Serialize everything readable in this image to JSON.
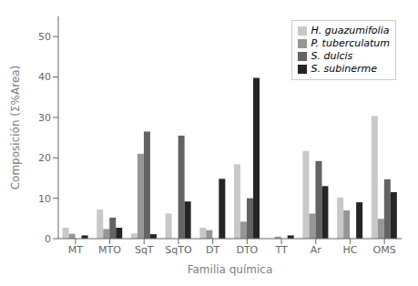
{
  "chart_data": {
    "type": "bar",
    "xlabel": "Familia química",
    "ylabel": "Composición (Σ%Area)",
    "categories": [
      "MT",
      "MTO",
      "SqT",
      "SqTO",
      "DT",
      "DTO",
      "TT",
      "Ar",
      "HC",
      "OMS"
    ],
    "series": [
      {
        "name": "H. guazumifolia",
        "color": "#c8c8c8",
        "values": [
          2.7,
          7.2,
          1.3,
          6.2,
          2.7,
          18.4,
          0.0,
          21.7,
          10.2,
          30.3
        ]
      },
      {
        "name": "P. tuberculatum",
        "color": "#969696",
        "values": [
          1.2,
          2.4,
          21.0,
          0.0,
          2.1,
          4.2,
          0.5,
          6.2,
          7.0,
          4.9
        ]
      },
      {
        "name": "S. dulcis",
        "color": "#636363",
        "values": [
          0.0,
          5.2,
          26.5,
          25.5,
          0.0,
          10.0,
          0.0,
          19.2,
          0.0,
          14.7
        ]
      },
      {
        "name": "S. subinerme",
        "color": "#252525",
        "values": [
          0.8,
          2.7,
          1.1,
          9.2,
          14.8,
          39.8,
          0.8,
          13.0,
          9.0,
          11.5
        ]
      }
    ],
    "ylim": [
      0,
      55
    ],
    "yticks": [
      0,
      10,
      20,
      30,
      40,
      50
    ],
    "grid": false,
    "legend": "upper right"
  }
}
